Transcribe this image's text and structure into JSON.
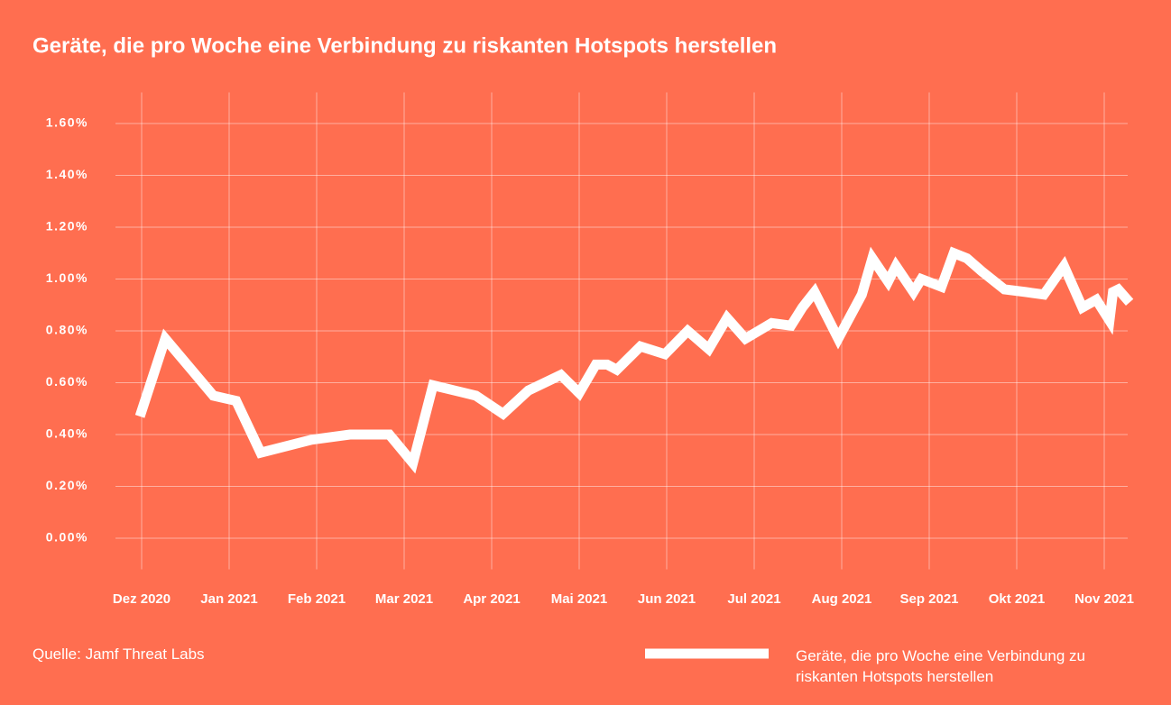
{
  "chart_data": {
    "type": "line",
    "title": "Geräte, die pro Woche eine Verbindung zu riskanten Hotspots herstellen",
    "source": "Quelle: Jamf Threat Labs",
    "xlim": [
      -0.25,
      11.4
    ],
    "xticks": [
      {
        "value": 0,
        "label": "Dez 2020"
      },
      {
        "value": 1,
        "label": "Jan 2021"
      },
      {
        "value": 2,
        "label": "Feb 2021"
      },
      {
        "value": 3,
        "label": "Mar 2021"
      },
      {
        "value": 4,
        "label": "Apr 2021"
      },
      {
        "value": 5,
        "label": "Mai 2021"
      },
      {
        "value": 6,
        "label": "Jun 2021"
      },
      {
        "value": 7,
        "label": "Jul 2021"
      },
      {
        "value": 8,
        "label": "Aug 2021"
      },
      {
        "value": 9,
        "label": "Sep 2021"
      },
      {
        "value": 10,
        "label": "Okt 2021"
      },
      {
        "value": 11,
        "label": "Nov 2021"
      }
    ],
    "ylim": [
      -0.12,
      1.72
    ],
    "yticks": [
      {
        "value": 0,
        "label": "0.00%"
      },
      {
        "value": 0.2,
        "label": "0.20%"
      },
      {
        "value": 0.4,
        "label": "0.40%"
      },
      {
        "value": 0.6,
        "label": "0.60%"
      },
      {
        "value": 0.8,
        "label": "0.80%"
      },
      {
        "value": 1.0,
        "label": "1.00%"
      },
      {
        "value": 1.2,
        "label": "1.20%"
      },
      {
        "value": 1.4,
        "label": "1.40%"
      },
      {
        "value": 1.6,
        "label": "1.60%"
      }
    ],
    "grid": true,
    "series": [
      {
        "name": "Geräte, die pro Woche eine Verbindung zu riskanten Hotspots herstellen",
        "color": "#ffffff",
        "x": [
          -0.02,
          0.27,
          0.57,
          0.82,
          1.08,
          1.36,
          1.94,
          2.38,
          2.83,
          3.1,
          3.33,
          3.82,
          4.13,
          4.42,
          4.79,
          5.0,
          5.19,
          5.32,
          5.43,
          5.7,
          5.98,
          6.24,
          6.48,
          6.69,
          6.9,
          7.2,
          7.42,
          7.55,
          7.69,
          7.96,
          8.23,
          8.35,
          8.53,
          8.62,
          8.82,
          8.91,
          9.14,
          9.28,
          9.43,
          9.6,
          9.86,
          10.1,
          10.31,
          10.54,
          10.75,
          10.91,
          11.06,
          11.1,
          11.16,
          11.29
        ],
        "values": [
          0.47,
          0.77,
          0.65,
          0.55,
          0.53,
          0.33,
          0.38,
          0.4,
          0.4,
          0.29,
          0.59,
          0.55,
          0.48,
          0.57,
          0.63,
          0.56,
          0.67,
          0.67,
          0.65,
          0.74,
          0.71,
          0.8,
          0.73,
          0.85,
          0.77,
          0.83,
          0.82,
          0.89,
          0.95,
          0.77,
          0.94,
          1.08,
          0.99,
          1.05,
          0.95,
          1.0,
          0.97,
          1.1,
          1.08,
          1.03,
          0.96,
          0.95,
          0.94,
          1.05,
          0.89,
          0.92,
          0.84,
          0.95,
          0.96,
          0.91
        ]
      }
    ]
  }
}
